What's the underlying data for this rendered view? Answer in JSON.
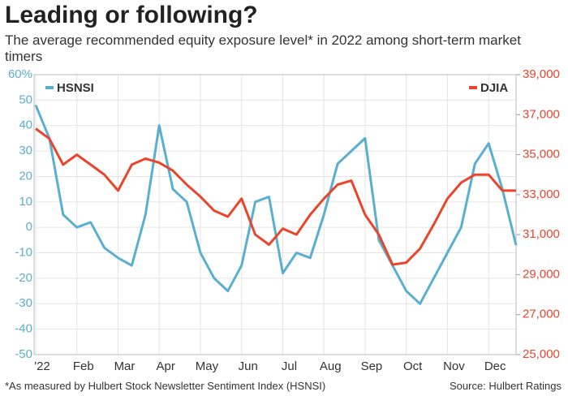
{
  "chart_data": {
    "type": "line",
    "title": "Leading or following?",
    "subtitle": "The average recommended equity exposure level* in 2022 among short-term market timers",
    "footnote": "*As measured by Hulbert Stock Newsletter Sentiment Index (HSNSI)",
    "source": "Source: Hulbert Ratings",
    "categories": [
      "'22",
      null,
      null,
      "Feb",
      null,
      null,
      "Mar",
      null,
      null,
      "Apr",
      null,
      null,
      "May",
      null,
      null,
      "Jun",
      null,
      null,
      "Jul",
      null,
      null,
      "Aug",
      null,
      null,
      "Sep",
      null,
      null,
      "Oct",
      null,
      null,
      "Nov",
      null,
      null,
      "Dec",
      null,
      null
    ],
    "series": [
      {
        "name": "HSNSI",
        "color": "#5aafcf",
        "values": [
          48,
          35,
          5,
          0,
          2,
          -8,
          -12,
          -15,
          5,
          40,
          15,
          10,
          -10,
          -20,
          -25,
          -15,
          10,
          12,
          -18,
          -10,
          -12,
          5,
          25,
          30,
          35,
          -5,
          -15,
          -25,
          -30,
          -20,
          -10,
          0,
          25,
          33,
          15,
          -7
        ]
      },
      {
        "name": "DJIA",
        "color": "#e8452c",
        "axis": "y2",
        "values": [
          36300,
          35800,
          34500,
          35000,
          34500,
          34000,
          33200,
          34500,
          34800,
          34600,
          34200,
          33500,
          32900,
          32200,
          31900,
          32800,
          31000,
          30500,
          31300,
          31000,
          32000,
          32800,
          33500,
          33700,
          32000,
          31000,
          29500,
          29600,
          30300,
          31500,
          32800,
          33600,
          34000,
          34000,
          33200,
          33200
        ]
      }
    ],
    "ylim": [
      -50,
      60
    ],
    "yticks": [
      -50,
      -40,
      -30,
      -20,
      -10,
      0,
      10,
      20,
      30,
      40,
      50,
      {
        "value": 60,
        "label": "60%"
      }
    ],
    "y2lim": [
      25000,
      39000
    ],
    "y2ticks": [
      {
        "value": 25000,
        "label": "25,000"
      },
      {
        "value": 27000,
        "label": "27,000"
      },
      {
        "value": 29000,
        "label": "29,000"
      },
      {
        "value": 31000,
        "label": "31,000"
      },
      {
        "value": 33000,
        "label": "33,000"
      },
      {
        "value": 35000,
        "label": "35,000"
      },
      {
        "value": 37000,
        "label": "37,000"
      },
      {
        "value": 39000,
        "label": "39,000"
      }
    ],
    "grid": true
  }
}
